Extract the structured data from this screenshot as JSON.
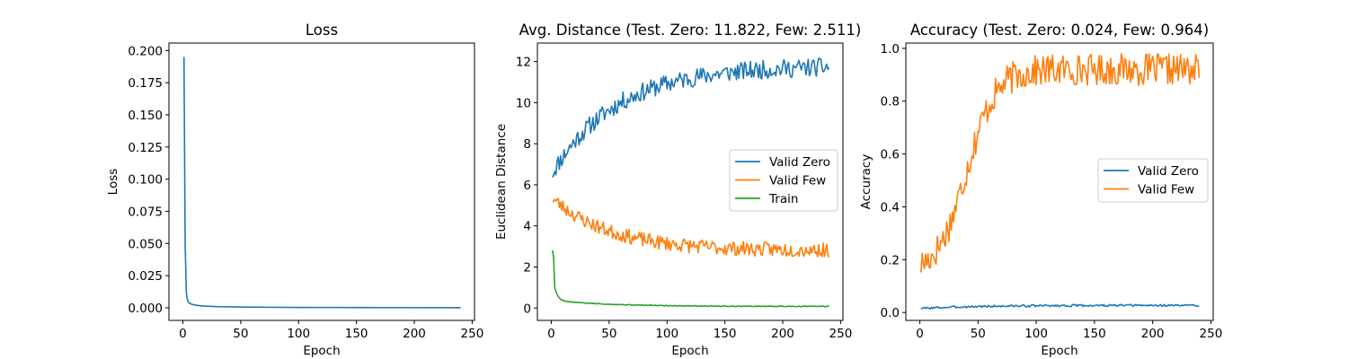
{
  "chart_data": [
    {
      "type": "line",
      "title": "Loss",
      "xlabel": "Epoch",
      "ylabel": "Loss",
      "xlim": [
        -12,
        252
      ],
      "ylim": [
        -0.0098,
        0.2058
      ],
      "xticks": [
        0,
        50,
        100,
        150,
        200,
        250
      ],
      "yticks": [
        0.0,
        0.025,
        0.05,
        0.075,
        0.1,
        0.125,
        0.15,
        0.175,
        0.2
      ],
      "ytick_labels": [
        "0.000",
        "0.025",
        "0.050",
        "0.075",
        "0.100",
        "0.125",
        "0.150",
        "0.175",
        "0.200"
      ],
      "legend": null,
      "series": [
        {
          "name": "Loss",
          "color": "#1f77b4",
          "x": [
            1,
            2,
            3,
            4,
            5,
            7,
            10,
            15,
            20,
            30,
            50,
            75,
            100,
            150,
            200,
            240
          ],
          "y": [
            0.195,
            0.05,
            0.012,
            0.006,
            0.004,
            0.003,
            0.0022,
            0.0016,
            0.0012,
            0.0009,
            0.0006,
            0.0004,
            0.0003,
            0.0002,
            0.00015,
            0.0001
          ]
        }
      ]
    },
    {
      "type": "line",
      "title": "Avg. Distance (Test. Zero: 11.822, Few: 2.511)",
      "xlabel": "Epoch",
      "ylabel": "Euclidean Distance",
      "xlim": [
        -12,
        252
      ],
      "ylim": [
        -0.6,
        12.9
      ],
      "xticks": [
        0,
        50,
        100,
        150,
        200,
        250
      ],
      "yticks": [
        0,
        2,
        4,
        6,
        8,
        10,
        12
      ],
      "ytick_labels": [
        "0",
        "2",
        "4",
        "6",
        "8",
        "10",
        "12"
      ],
      "legend": "center-right",
      "series": [
        {
          "name": "Valid Zero",
          "color": "#1f77b4",
          "start": 6.5,
          "end": 11.8,
          "kind": "rise",
          "rate": 0.018,
          "noise": 0.45,
          "seed": 11
        },
        {
          "name": "Valid Few",
          "color": "#ff7f0e",
          "start": 5.4,
          "end": 2.8,
          "kind": "decay",
          "rate": 0.02,
          "noise": 0.35,
          "seed": 23
        },
        {
          "name": "Train",
          "color": "#2ca02c",
          "start": 3.05,
          "end": 0.08,
          "kind": "sharp",
          "rate": 0.35,
          "noise": 0.02,
          "seed": 5
        }
      ]
    },
    {
      "type": "line",
      "title": "Accuracy (Test. Zero: 0.024, Few: 0.964)",
      "xlabel": "Epoch",
      "ylabel": "Accuracy",
      "xlim": [
        -12,
        252
      ],
      "ylim": [
        -0.03,
        1.02
      ],
      "xticks": [
        0,
        50,
        100,
        150,
        200,
        250
      ],
      "yticks": [
        0.0,
        0.2,
        0.4,
        0.6,
        0.8,
        1.0
      ],
      "ytick_labels": [
        "0.0",
        "0.2",
        "0.4",
        "0.6",
        "0.8",
        "1.0"
      ],
      "legend": "center-right",
      "series": [
        {
          "name": "Valid Zero",
          "color": "#1f77b4",
          "start": 0.015,
          "end": 0.027,
          "kind": "rise",
          "rate": 0.02,
          "noise": 0.004,
          "seed": 3
        },
        {
          "name": "Valid Few",
          "color": "#ff7f0e",
          "start": 0.15,
          "end": 0.92,
          "kind": "sigmoid",
          "rate": 0.08,
          "noise": 0.06,
          "seed": 17
        }
      ]
    }
  ]
}
